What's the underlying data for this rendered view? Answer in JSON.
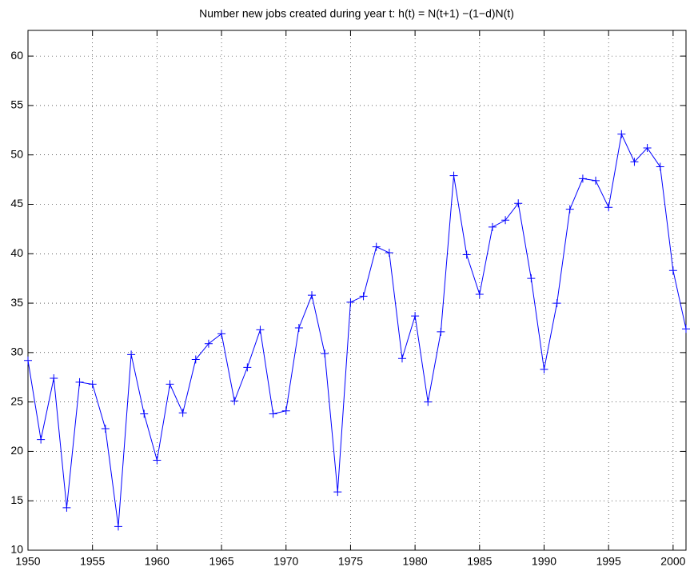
{
  "chart_data": {
    "type": "line",
    "title": "Number new jobs created during year t: h(t)  = N(t+1) −(1−d)N(t)",
    "x": [
      1950,
      1951,
      1952,
      1953,
      1954,
      1955,
      1956,
      1957,
      1958,
      1959,
      1960,
      1961,
      1962,
      1963,
      1964,
      1965,
      1966,
      1967,
      1968,
      1969,
      1970,
      1971,
      1972,
      1973,
      1974,
      1975,
      1976,
      1977,
      1978,
      1979,
      1980,
      1981,
      1982,
      1983,
      1984,
      1985,
      1986,
      1987,
      1988,
      1989,
      1990,
      1991,
      1992,
      1993,
      1994,
      1995,
      1996,
      1997,
      1998,
      1999,
      2000,
      2001
    ],
    "values": [
      29.2,
      21.2,
      27.4,
      14.3,
      27.0,
      26.8,
      22.3,
      12.4,
      29.8,
      23.8,
      19.1,
      26.8,
      23.9,
      29.3,
      30.9,
      31.9,
      25.1,
      28.5,
      32.3,
      23.8,
      24.1,
      32.5,
      35.8,
      29.9,
      15.9,
      35.1,
      35.7,
      40.7,
      40.1,
      29.4,
      33.7,
      25.0,
      32.1,
      47.9,
      39.9,
      35.9,
      42.7,
      43.4,
      45.1,
      37.5,
      28.3,
      35.0,
      44.5,
      47.6,
      47.4,
      44.7,
      52.1,
      49.3,
      50.7,
      48.8,
      38.3,
      32.4
    ],
    "color": "#0000ff",
    "marker": "+",
    "xlim": [
      1950,
      2001
    ],
    "xticks": [
      1950,
      1955,
      1960,
      1965,
      1970,
      1975,
      1980,
      1985,
      1990,
      1995,
      2000
    ],
    "ylim": [
      10,
      62.6
    ],
    "yticks": [
      10,
      15,
      20,
      25,
      30,
      35,
      40,
      45,
      50,
      55,
      60
    ],
    "grid": true
  }
}
